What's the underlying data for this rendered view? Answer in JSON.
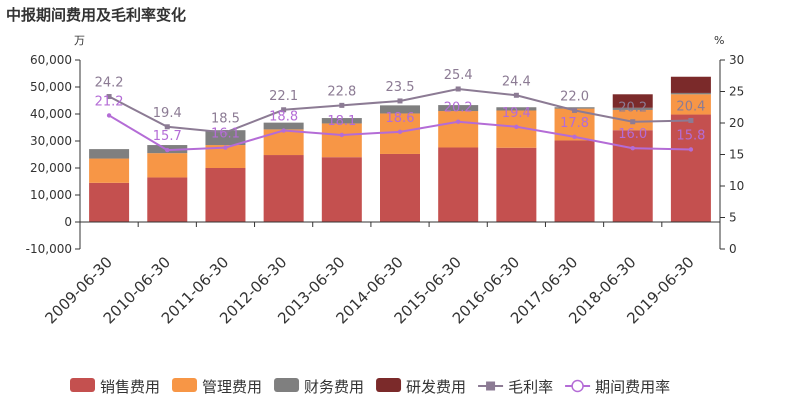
{
  "chart_data": {
    "type": "bar",
    "title": "中报期间费用及毛利率变化",
    "y_left_unit": "万",
    "y_right_unit": "%",
    "y_left_range": [
      -10000,
      60000
    ],
    "y_left_ticks": [
      "-10,000",
      "0",
      "10,000",
      "20,000",
      "30,000",
      "40,000",
      "50,000",
      "60,000"
    ],
    "y_right_range": [
      0,
      30
    ],
    "y_right_ticks": [
      "0",
      "5",
      "10",
      "15",
      "20",
      "25",
      "30"
    ],
    "categories": [
      "2009-06-30",
      "2010-06-30",
      "2011-06-30",
      "2012-06-30",
      "2013-06-30",
      "2014-06-30",
      "2015-06-30",
      "2016-06-30",
      "2017-06-30",
      "2018-06-30",
      "2019-06-30"
    ],
    "stacked_series": [
      {
        "name": "销售费用",
        "color": "#c4504f",
        "values": [
          14500,
          16500,
          20000,
          24800,
          24000,
          25200,
          27600,
          27500,
          30200,
          34000,
          39800
        ]
      },
      {
        "name": "管理费用",
        "color": "#f79646",
        "values": [
          9000,
          9000,
          8500,
          9500,
          12500,
          15000,
          13500,
          13800,
          11800,
          7500,
          7500
        ]
      },
      {
        "name": "财务费用",
        "color": "#7f7f7f",
        "values": [
          3500,
          3000,
          5500,
          2500,
          2000,
          3000,
          2200,
          1200,
          500,
          800,
          500
        ]
      },
      {
        "name": "研发费用",
        "color": "#7b2a2a",
        "values": [
          0,
          0,
          0,
          0,
          0,
          0,
          0,
          0,
          0,
          5000,
          6000
        ]
      }
    ],
    "line_series": [
      {
        "name": "毛利率",
        "color": "#8c7b94",
        "marker": "square",
        "values": [
          24.2,
          19.4,
          18.5,
          22.1,
          22.8,
          23.5,
          25.4,
          24.4,
          22.0,
          20.2,
          20.4
        ],
        "labels": [
          "24.2",
          "19.4",
          "18.5",
          "22.1",
          "22.8",
          "23.5",
          "25.4",
          "24.4",
          "22.0",
          "20.2",
          "20.4"
        ]
      },
      {
        "name": "期间费用率",
        "color": "#b46cd6",
        "marker": "circle",
        "values": [
          21.2,
          15.7,
          16.1,
          18.8,
          18.1,
          18.6,
          20.2,
          19.4,
          17.8,
          16.0,
          15.8
        ],
        "labels": [
          "21.2",
          "15.7",
          "16.1",
          "18.8",
          "18.1",
          "18.6",
          "20.2",
          "19.4",
          "17.8",
          "16.0",
          "15.8"
        ]
      }
    ],
    "grid": false,
    "legend_position": "bottom"
  }
}
